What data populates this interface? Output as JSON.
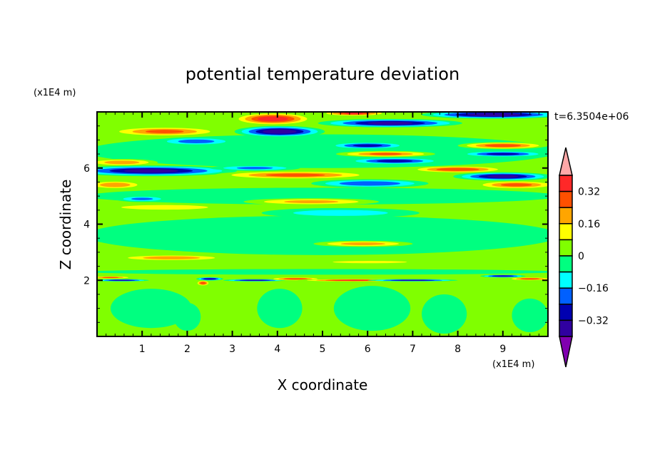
{
  "chart_data": {
    "type": "heatmap",
    "title": "potential temperature deviation",
    "xlabel": "X coordinate",
    "ylabel": "Z coordinate",
    "x_unit": "(x1E4 m)",
    "y_unit": "(x1E4 m)",
    "annotation": "t=6.3504e+06",
    "xlim": [
      0,
      10
    ],
    "ylim": [
      0,
      8
    ],
    "x_ticks": [
      1,
      2,
      3,
      4,
      5,
      6,
      7,
      8,
      9
    ],
    "y_ticks": [
      2,
      4,
      6
    ],
    "colorbar": {
      "levels": [
        -0.4,
        -0.32,
        -0.24,
        -0.16,
        -0.08,
        0,
        0.08,
        0.16,
        0.24,
        0.32,
        0.4
      ],
      "tick_labels": [
        "0.32",
        "0.16",
        "0",
        "−0.16",
        "−0.32"
      ],
      "tick_values": [
        0.32,
        0.16,
        0,
        -0.16,
        -0.32
      ],
      "colors": [
        "#8000b0",
        "#3000a0",
        "#0000b0",
        "#0060ff",
        "#00ffff",
        "#00ff80",
        "#80ff00",
        "#ffff00",
        "#ffa500",
        "#ff5000",
        "#ff2828",
        "#ffa8a8"
      ],
      "extend": "both"
    },
    "background_value": 0.04,
    "features": [
      {
        "x": 5.0,
        "z": 3.6,
        "w": 10.5,
        "h": 1.4,
        "v": -0.04
      },
      {
        "x": 5.0,
        "z": 5.0,
        "w": 10.5,
        "h": 0.6,
        "v": -0.1
      },
      {
        "x": 5.0,
        "z": 6.6,
        "w": 10.5,
        "h": 1.2,
        "v": -0.04
      },
      {
        "x": 5.0,
        "z": 2.3,
        "w": 10.5,
        "h": 0.2,
        "v": -0.1
      },
      {
        "x": 1.5,
        "z": 4.6,
        "w": 3.5,
        "h": 0.3,
        "v": 0.12
      },
      {
        "x": 5.4,
        "z": 4.4,
        "w": 3.5,
        "h": 0.35,
        "v": -0.14
      },
      {
        "x": 4.75,
        "z": 4.8,
        "w": 3.0,
        "h": 0.25,
        "v": 0.2
      },
      {
        "x": 1.0,
        "z": 4.9,
        "w": 1.2,
        "h": 0.22,
        "v": -0.2
      },
      {
        "x": 5.9,
        "z": 3.3,
        "w": 2.2,
        "h": 0.22,
        "v": 0.22
      },
      {
        "x": 1.65,
        "z": 2.8,
        "w": 2.6,
        "h": 0.22,
        "v": 0.24
      },
      {
        "x": 6.05,
        "z": 2.65,
        "w": 3.0,
        "h": 0.15,
        "v": 0.12
      },
      {
        "x": 0.4,
        "z": 5.4,
        "w": 1.3,
        "h": 0.3,
        "v": 0.26
      },
      {
        "x": 6.05,
        "z": 5.45,
        "w": 2.6,
        "h": 0.3,
        "v": -0.26
      },
      {
        "x": 9.3,
        "z": 5.4,
        "w": 1.9,
        "h": 0.3,
        "v": 0.3
      },
      {
        "x": 1.2,
        "z": 5.9,
        "w": 3.8,
        "h": 0.38,
        "v": -0.38
      },
      {
        "x": 3.5,
        "z": 6.0,
        "w": 2.0,
        "h": 0.2,
        "v": -0.2
      },
      {
        "x": 4.4,
        "z": 5.75,
        "w": 3.6,
        "h": 0.3,
        "v": 0.3
      },
      {
        "x": 8.0,
        "z": 5.95,
        "w": 2.2,
        "h": 0.25,
        "v": 0.34
      },
      {
        "x": 9.0,
        "z": 5.7,
        "w": 2.2,
        "h": 0.3,
        "v": -0.38
      },
      {
        "x": 0.55,
        "z": 6.2,
        "w": 1.6,
        "h": 0.25,
        "v": 0.24
      },
      {
        "x": 6.6,
        "z": 6.25,
        "w": 2.2,
        "h": 0.25,
        "v": -0.3
      },
      {
        "x": 6.4,
        "z": 6.5,
        "w": 2.2,
        "h": 0.22,
        "v": 0.28
      },
      {
        "x": 9.0,
        "z": 6.5,
        "w": 2.0,
        "h": 0.22,
        "v": -0.3
      },
      {
        "x": 6.0,
        "z": 6.8,
        "w": 1.8,
        "h": 0.25,
        "v": -0.3
      },
      {
        "x": 9.0,
        "z": 6.8,
        "w": 2.0,
        "h": 0.25,
        "v": 0.32
      },
      {
        "x": 2.2,
        "z": 6.95,
        "w": 1.8,
        "h": 0.3,
        "v": -0.22
      },
      {
        "x": 1.5,
        "z": 7.3,
        "w": 2.6,
        "h": 0.35,
        "v": 0.28
      },
      {
        "x": 4.05,
        "z": 7.3,
        "w": 2.0,
        "h": 0.4,
        "v": -0.42
      },
      {
        "x": 3.9,
        "z": 7.75,
        "w": 1.8,
        "h": 0.45,
        "v": 0.42
      },
      {
        "x": 5.7,
        "z": 7.95,
        "w": 1.5,
        "h": 0.2,
        "v": 0.36
      },
      {
        "x": 6.5,
        "z": 7.6,
        "w": 3.2,
        "h": 0.3,
        "v": -0.38
      },
      {
        "x": 8.8,
        "z": 7.9,
        "w": 3.2,
        "h": 0.28,
        "v": -0.42
      },
      {
        "x": 0.3,
        "z": 2.1,
        "w": 1.0,
        "h": 0.1,
        "v": 0.3
      },
      {
        "x": 0.55,
        "z": 2.0,
        "w": 1.2,
        "h": 0.08,
        "v": -0.38
      },
      {
        "x": 2.5,
        "z": 2.05,
        "w": 0.6,
        "h": 0.12,
        "v": -0.38
      },
      {
        "x": 2.35,
        "z": 1.9,
        "w": 0.3,
        "h": 0.2,
        "v": 0.35
      },
      {
        "x": 3.5,
        "z": 2.0,
        "w": 1.4,
        "h": 0.08,
        "v": -0.38
      },
      {
        "x": 4.4,
        "z": 2.05,
        "w": 1.2,
        "h": 0.12,
        "v": 0.35
      },
      {
        "x": 5.7,
        "z": 2.0,
        "w": 2.5,
        "h": 0.1,
        "v": 0.4
      },
      {
        "x": 7.0,
        "z": 2.0,
        "w": 2.0,
        "h": 0.08,
        "v": -0.38
      },
      {
        "x": 9.0,
        "z": 2.15,
        "w": 1.0,
        "h": 0.1,
        "v": -0.38
      },
      {
        "x": 9.6,
        "z": 2.05,
        "w": 1.0,
        "h": 0.12,
        "v": 0.34
      },
      {
        "x": 1.2,
        "z": 1.0,
        "w": 1.8,
        "h": 1.4,
        "v": -0.04
      },
      {
        "x": 2.0,
        "z": 0.7,
        "w": 0.6,
        "h": 1.0,
        "v": -0.04
      },
      {
        "x": 4.05,
        "z": 1.0,
        "w": 1.0,
        "h": 1.4,
        "v": -0.04
      },
      {
        "x": 6.1,
        "z": 1.0,
        "w": 1.7,
        "h": 1.6,
        "v": -0.04
      },
      {
        "x": 7.7,
        "z": 0.8,
        "w": 1.0,
        "h": 1.4,
        "v": -0.04
      },
      {
        "x": 9.6,
        "z": 0.75,
        "w": 0.8,
        "h": 1.2,
        "v": -0.04
      }
    ]
  }
}
